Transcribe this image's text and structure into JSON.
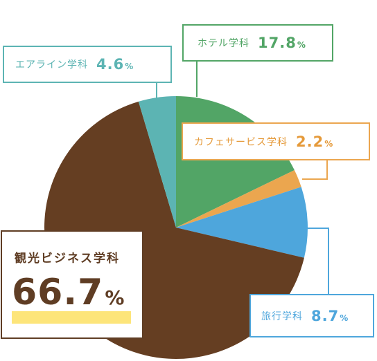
{
  "chart_data": {
    "type": "pie",
    "slices": [
      {
        "label": "ホテル学科",
        "value": 17.8,
        "value_text": "17.8",
        "color": "#52a566"
      },
      {
        "label": "カフェサービス学科",
        "value": 2.2,
        "value_text": "2.2",
        "color": "#eba64f"
      },
      {
        "label": "旅行学科",
        "value": 8.7,
        "value_text": "8.7",
        "color": "#4ea6dc"
      },
      {
        "label": "観光ビジネス学科",
        "value": 66.7,
        "value_text": "66.7",
        "color": "#653e22"
      },
      {
        "label": "エアライン学科",
        "value": 4.6,
        "value_text": "4.6",
        "color": "#5cb4b3"
      }
    ],
    "unit": "%"
  }
}
